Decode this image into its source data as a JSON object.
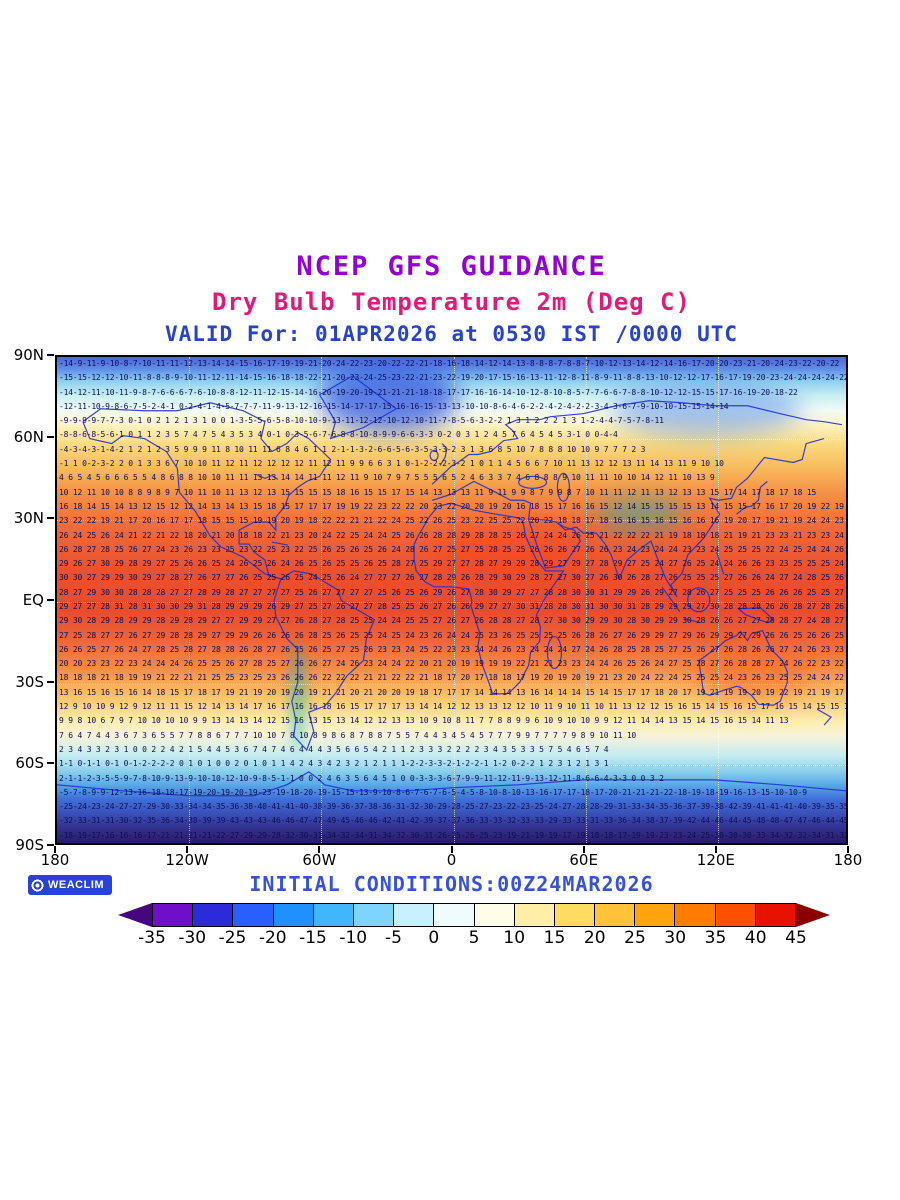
{
  "header": {
    "title": "NCEP GFS GUIDANCE",
    "subtitle": "Dry Bulb Temperature 2m (Deg C)",
    "valid_line": "VALID For: 01APR2026 at 0530 IST /0000 UTC"
  },
  "map": {
    "lat_labels": [
      "90N",
      "60N",
      "30N",
      "EQ",
      "30S",
      "60S",
      "90S"
    ],
    "lon_labels": [
      "180",
      "120W",
      "60W",
      "0",
      "60E",
      "120E",
      "180"
    ]
  },
  "footer": {
    "initial_conditions": "INITIAL CONDITIONS:00Z24MAR2026",
    "brand": "WEACLIM"
  },
  "colorbar": {
    "labels": [
      "-35",
      "-30",
      "-25",
      "-20",
      "-15",
      "-10",
      "-5",
      "0",
      "5",
      "10",
      "15",
      "20",
      "25",
      "30",
      "35",
      "40",
      "45"
    ],
    "segment_colors": [
      "#6f10c8",
      "#2b2bdc",
      "#2a5fff",
      "#1e90ff",
      "#41b6ff",
      "#7dd4ff",
      "#c9f0ff",
      "#eefcff",
      "#fffde8",
      "#ffeea6",
      "#ffdb60",
      "#ffc238",
      "#ffa40e",
      "#ff7c00",
      "#ff4f00",
      "#e81200"
    ],
    "arrow_left_color": "#45067e",
    "arrow_right_color": "#8a0000"
  },
  "chart_data": {
    "type": "heatmap",
    "model": "NCEP GFS GUIDANCE",
    "title": "Dry Bulb Temperature 2m (Deg C)",
    "valid": "01APR2026 at 0530 IST /0000 UTC",
    "initialized": "00Z24MAR2026",
    "units": "Deg C",
    "x": {
      "label": "longitude",
      "ticks": [
        "180",
        "120W",
        "60W",
        "0",
        "60E",
        "120E",
        "180"
      ],
      "range_deg": [
        -180,
        180
      ]
    },
    "y": {
      "label": "latitude",
      "ticks": [
        "90N",
        "60N",
        "30N",
        "EQ",
        "30S",
        "60S",
        "90S"
      ],
      "range_deg": [
        -90,
        90
      ]
    },
    "colorbar_levels_c": [
      -35,
      -30,
      -25,
      -20,
      -15,
      -10,
      -5,
      0,
      5,
      10,
      15,
      20,
      25,
      30,
      35,
      40,
      45
    ],
    "colorbar_extend": "both",
    "zonal_mean_temp_c": {
      "lat": [
        90,
        80,
        70,
        65,
        60,
        55,
        50,
        45,
        40,
        35,
        30,
        25,
        20,
        15,
        10,
        5,
        0,
        -5,
        -10,
        -15,
        -20,
        -25,
        -30,
        -35,
        -40,
        -45,
        -50,
        -55,
        -60,
        -65,
        -70,
        -75,
        -80,
        -85,
        -90
      ],
      "temp": [
        -15,
        -16,
        -8,
        -4,
        -1,
        3,
        6,
        8,
        12,
        17,
        20,
        23,
        25,
        26,
        27,
        27,
        28,
        28,
        27,
        26,
        25,
        23,
        21,
        17,
        13,
        11,
        7,
        4,
        1,
        -2,
        -8,
        -25,
        -45,
        -30,
        -20
      ]
    }
  }
}
